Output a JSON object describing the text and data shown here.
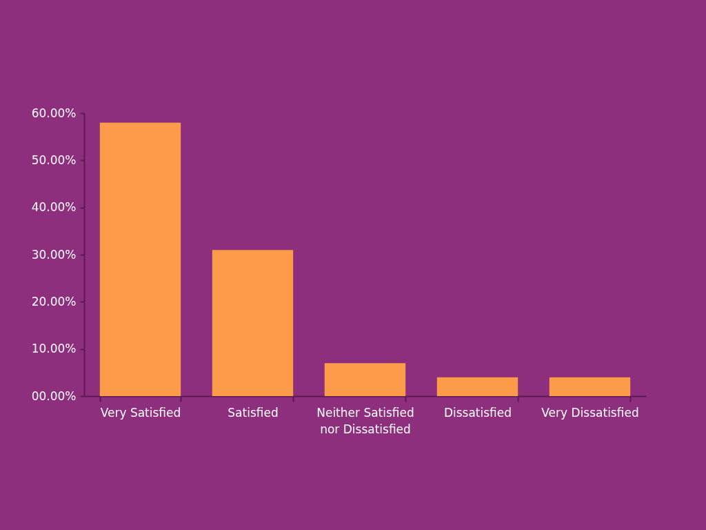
{
  "chart_data": {
    "type": "bar",
    "categories": [
      "Very Satisfied",
      "Satisfied",
      "Neither Satisfied nor Dissatisfied",
      "Dissatisfied",
      "Very Dissatisfied"
    ],
    "values": [
      58,
      31,
      7,
      4,
      4
    ],
    "color": "#fc9c4a",
    "ylim": [
      0,
      60
    ],
    "yticks": [
      {
        "value": 0,
        "label": "00.00%"
      },
      {
        "value": 10,
        "label": "10.00%"
      },
      {
        "value": 20,
        "label": "20.00%"
      },
      {
        "value": 30,
        "label": "30.00%"
      },
      {
        "value": 40,
        "label": "40.00%"
      },
      {
        "value": 50,
        "label": "50.00%"
      },
      {
        "value": 60,
        "label": "60.00%"
      }
    ],
    "grid": false
  }
}
